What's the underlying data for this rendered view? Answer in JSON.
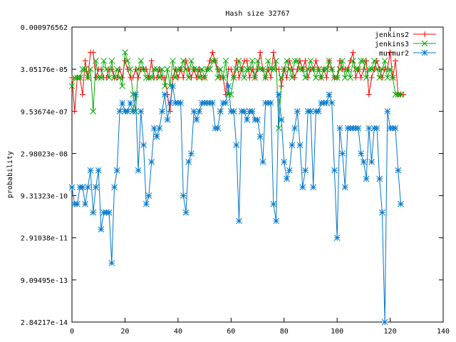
{
  "chart_data": {
    "type": "line",
    "title": "Hash size 32767",
    "xlabel": "",
    "ylabel": "probability",
    "x_scale": "linear",
    "y_scale": "log2",
    "xlim": [
      0,
      140
    ],
    "ylim_log2": [
      -45,
      -10
    ],
    "x_ticks": [
      0,
      20,
      40,
      60,
      80,
      100,
      120,
      140
    ],
    "y_ticks": [
      {
        "label": "0.000976562",
        "log2": -10
      },
      {
        "label": "3.05176e-05",
        "log2": -15
      },
      {
        "label": "9.53674e-07",
        "log2": -20
      },
      {
        "label": "2.98023e-08",
        "log2": -25
      },
      {
        "label": "9.31323e-10",
        "log2": -30
      },
      {
        "label": "2.91038e-11",
        "log2": -35
      },
      {
        "label": "9.09495e-13",
        "log2": -40
      },
      {
        "label": "2.84217e-14",
        "log2": -45
      }
    ],
    "grid": false,
    "legend_position": "top-right",
    "series": [
      {
        "name": "jenkins2",
        "color": "#ff0000",
        "marker": "plus",
        "log2_values": [
          -16,
          -20,
          -16,
          -16,
          -18,
          -14,
          -16,
          -13,
          -13,
          -16,
          -15,
          -15,
          -16,
          -16,
          -15,
          -15,
          -16,
          -16,
          -15,
          -16,
          -14,
          -15,
          -16,
          -16,
          -15,
          -16,
          -15,
          -15,
          -15,
          -16,
          -14,
          -16,
          -16,
          -15,
          -16,
          -16,
          -18,
          -20,
          -16,
          -15,
          -16,
          -15,
          -16,
          -14,
          -15,
          -16,
          -15,
          -16,
          -15,
          -16,
          -16,
          -15,
          -14,
          -13,
          -14,
          -15,
          -16,
          -16,
          -18,
          -15,
          -15,
          -16,
          -14,
          -16,
          -15,
          -14,
          -14,
          -16,
          -15,
          -16,
          -15,
          -13,
          -15,
          -16,
          -15,
          -16,
          -13,
          -15,
          -15,
          -17,
          -15,
          -16,
          -14,
          -15,
          -16,
          -15,
          -14,
          -15,
          -14,
          -16,
          -15,
          -15,
          -14,
          -15,
          -16,
          -15,
          -16,
          -14,
          -15,
          -16,
          -16,
          -14,
          -15,
          -15,
          -15,
          -14,
          -13,
          -16,
          -15,
          -16,
          -15,
          -14,
          -18,
          -16,
          -15,
          -14,
          -15,
          -16,
          -15,
          -15,
          -13,
          -16,
          -14,
          -18,
          -18,
          -18
        ]
      },
      {
        "name": "jenkins3",
        "color": "#00aa00",
        "marker": "cross",
        "log2_values": [
          -17,
          -16,
          -16,
          -16,
          -15,
          -15,
          -16,
          -15,
          -20,
          -14,
          -16,
          -16,
          -14,
          -15,
          -16,
          -14,
          -16,
          -15,
          -16,
          -17,
          -13,
          -14,
          -15,
          -18,
          -20,
          -15,
          -14,
          -15,
          -16,
          -16,
          -16,
          -15,
          -15,
          -16,
          -15,
          -17,
          -15,
          -17,
          -14,
          -16,
          -15,
          -15,
          -14,
          -15,
          -16,
          -14,
          -15,
          -15,
          -16,
          -15,
          -16,
          -15,
          -15,
          -14,
          -14,
          -16,
          -15,
          -16,
          -14,
          -18,
          -18,
          -16,
          -15,
          -14,
          -15,
          -16,
          -15,
          -15,
          -14,
          -16,
          -14,
          -15,
          -15,
          -16,
          -14,
          -15,
          -15,
          -14,
          -22,
          -16,
          -15,
          -14,
          -15,
          -16,
          -14,
          -14,
          -15,
          -15,
          -16,
          -15,
          -14,
          -15,
          -16,
          -15,
          -16,
          -15,
          -15,
          -14,
          -15,
          -16,
          -16,
          -15,
          -14,
          -16,
          -15,
          -16,
          -14,
          -15,
          -15,
          -14,
          -14,
          -16,
          -15,
          -15,
          -14,
          -15,
          -16,
          -15,
          -14,
          -16,
          -15,
          -16,
          -18,
          -18,
          -18
        ]
      },
      {
        "name": "murmur2",
        "color": "#0077cc",
        "marker": "star",
        "log2_values": [
          -29,
          -31,
          -31,
          -29,
          -29,
          -31,
          -29,
          -27,
          -32,
          -29,
          -27,
          -34,
          -32,
          -32,
          -32,
          -38,
          -29,
          -27,
          -20,
          -19,
          -20,
          -20,
          -19,
          -20,
          -18,
          -27,
          -20,
          -24,
          -31,
          -30,
          -26,
          -22,
          -23,
          -22,
          -20,
          -18,
          -21,
          -19,
          -17,
          -19,
          -19,
          -19,
          -30,
          -32,
          -26,
          -25,
          -20,
          -21,
          -20,
          -19,
          -19,
          -19,
          -19,
          -19,
          -22,
          -22,
          -20,
          -19,
          -19,
          -17,
          -20,
          -20,
          -24,
          -33,
          -20,
          -20,
          -21,
          -20,
          -20,
          -21,
          -21,
          -23,
          -26,
          -19,
          -19,
          -19,
          -31,
          -33,
          -18,
          -21,
          -26,
          -28,
          -27,
          -24,
          -22,
          -20,
          -24,
          -29,
          -27,
          -20,
          -20,
          -29,
          -20,
          -20,
          -19,
          -19,
          -19,
          -18,
          -19,
          -27,
          -35,
          -22,
          -25,
          -29,
          -22,
          -22,
          -22,
          -22,
          -22,
          -25,
          -26,
          -28,
          -22,
          -26,
          -22,
          -22,
          -28,
          -32,
          -45,
          -20,
          -22,
          -22,
          -22,
          -27,
          -31
        ]
      }
    ]
  }
}
